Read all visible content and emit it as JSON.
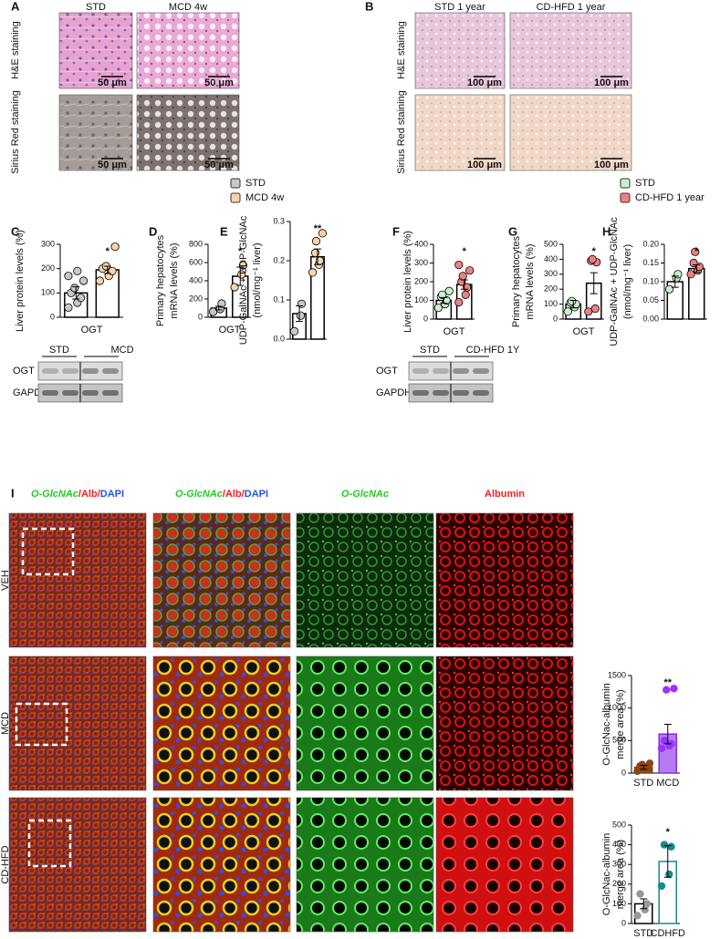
{
  "panels": {
    "A": {
      "label": "A",
      "columns": [
        "STD",
        "MCD 4w"
      ],
      "rows": [
        "H&E staining",
        "Sirius Red staining"
      ],
      "scale_bars": [
        "50 μm",
        "50 μm",
        "50 μm",
        "50 μm"
      ],
      "legend": [
        {
          "name": "STD",
          "color": "#c8c8c8"
        },
        {
          "name": "MCD 4w",
          "color": "#f9d3a9"
        }
      ]
    },
    "B": {
      "label": "B",
      "columns": [
        "STD 1 year",
        "CD-HFD 1 year"
      ],
      "rows": [
        "H&E staining",
        "Sirius Red staining"
      ],
      "scale_bars": [
        "100 μm",
        "100 μm",
        "100 μm",
        "100 μm"
      ],
      "legend": [
        {
          "name": "STD",
          "color": "#c9f0c9"
        },
        {
          "name": "CD-HFD 1 year",
          "color": "#f08080"
        }
      ]
    },
    "C": {
      "label": "C",
      "blot": {
        "groups": [
          "STD",
          "MCD"
        ],
        "rows": [
          "OGT",
          "GAPDH"
        ]
      }
    },
    "D": {
      "label": "D"
    },
    "E": {
      "label": "E"
    },
    "F": {
      "label": "F",
      "blot": {
        "groups": [
          "STD",
          "CD-HFD 1Y"
        ],
        "rows": [
          "OGT",
          "GAPDH"
        ]
      }
    },
    "G": {
      "label": "G"
    },
    "H": {
      "label": "H"
    },
    "I": {
      "label": "I",
      "columns": [
        [
          {
            "text": "O-GlcNAc",
            "color": "#22cc22"
          },
          {
            "text": "/Alb/",
            "color": "#ee2222"
          },
          {
            "text": "DAPI",
            "color": "#2255ee"
          }
        ],
        [
          {
            "text": "O-GlcNAc",
            "color": "#22cc22"
          },
          {
            "text": "/Alb/",
            "color": "#ee2222"
          },
          {
            "text": "DAPI",
            "color": "#2255ee"
          }
        ],
        [
          {
            "text": "O-GlcNAc",
            "color": "#22cc22"
          }
        ],
        [
          {
            "text": "Albumin",
            "color": "#ee2222"
          }
        ]
      ],
      "rows": [
        "VEH",
        "MCD",
        "CD-HFD"
      ]
    }
  },
  "chart_data": [
    {
      "type": "bar",
      "ylabel": [
        "Liver protein levels (%)"
      ],
      "xlabel": "OGT",
      "categories": [
        null,
        null
      ],
      "values": [
        100,
        195
      ],
      "errors": [
        25,
        15
      ],
      "annotation": "*",
      "points": [
        [
          40,
          60,
          80,
          100,
          120,
          150,
          170,
          190
        ],
        [
          150,
          170,
          190,
          200,
          210,
          290
        ]
      ],
      "colors": [
        "#000000",
        "#000000"
      ],
      "fills": [
        "#ffffff",
        "#ffffff"
      ],
      "point_colors": [
        "#c8c8c8",
        "#f9d3a9"
      ],
      "point_stroke": "#000000",
      "ylim": [
        0,
        300
      ],
      "yticks": [
        0,
        100,
        200,
        300
      ]
    },
    {
      "type": "bar",
      "ylabel": [
        "Primary hepatocytes",
        "mRNA levels (%)"
      ],
      "xlabel": "OGT",
      "categories": [
        null,
        null
      ],
      "values": [
        100,
        450
      ],
      "errors": [
        20,
        100
      ],
      "annotation": "*",
      "points": [
        [
          60,
          90,
          150
        ],
        [
          330,
          470,
          570
        ]
      ],
      "colors": [
        "#000000",
        "#000000"
      ],
      "fills": [
        "#ffffff",
        "#ffffff"
      ],
      "point_colors": [
        "#c8c8c8",
        "#f9d3a9"
      ],
      "point_stroke": "#000000",
      "ylim": [
        0,
        800
      ],
      "yticks": [
        0,
        200,
        400,
        600,
        800
      ]
    },
    {
      "type": "bar",
      "ylabel": [
        "UDP-GalNAc + UDP-GlcNAc",
        "(nmol/mg⁻¹ liver)"
      ],
      "categories": [
        null,
        null
      ],
      "values": [
        0.065,
        0.21
      ],
      "errors": [
        0.02,
        0.02
      ],
      "annotation": "**",
      "points": [
        [
          0.02,
          0.06,
          0.09
        ],
        [
          0.17,
          0.19,
          0.2,
          0.22,
          0.25,
          0.27
        ]
      ],
      "colors": [
        "#000000",
        "#000000"
      ],
      "fills": [
        "#ffffff",
        "#ffffff"
      ],
      "point_colors": [
        "#c8c8c8",
        "#f9d3a9"
      ],
      "point_stroke": "#000000",
      "ylim": [
        0,
        0.3
      ],
      "yticks": [
        {
          "value": 0,
          "label": "0.0"
        },
        0.1,
        0.2,
        0.3
      ]
    },
    {
      "type": "bar",
      "ylabel": [
        "Liver protein levels (%)"
      ],
      "xlabel": "OGT",
      "categories": [
        null,
        null
      ],
      "values": [
        100,
        185
      ],
      "errors": [
        15,
        25
      ],
      "annotation": "*",
      "points": [
        [
          60,
          80,
          100,
          120,
          130,
          150
        ],
        [
          90,
          130,
          170,
          200,
          230,
          260,
          290
        ]
      ],
      "colors": [
        "#000000",
        "#000000"
      ],
      "fills": [
        "#ffffff",
        "#ffffff"
      ],
      "point_colors": [
        "#c9f0c9",
        "#f08080"
      ],
      "point_stroke": "#000000",
      "ylim": [
        0,
        400
      ],
      "yticks": [
        0,
        100,
        200,
        300,
        400
      ]
    },
    {
      "type": "bar",
      "ylabel": [
        "Primary hepatocytes",
        "mRNA levels (%)"
      ],
      "xlabel": "OGT",
      "categories": [
        null,
        null
      ],
      "values": [
        100,
        240
      ],
      "errors": [
        25,
        70
      ],
      "annotation": "*",
      "points": [
        [
          50,
          80,
          100,
          110,
          120
        ],
        [
          50,
          70,
          380,
          390,
          400
        ]
      ],
      "colors": [
        "#000000",
        "#000000"
      ],
      "fills": [
        "#ffffff",
        "#ffffff"
      ],
      "point_colors": [
        "#c9f0c9",
        "#f08080"
      ],
      "point_stroke": "#000000",
      "ylim": [
        0,
        500
      ],
      "yticks": [
        0,
        100,
        200,
        300,
        400,
        500
      ]
    },
    {
      "type": "bar",
      "ylabel": [
        "UDP-GalNAc + UDP-GlcNAc",
        "(nmol/mg⁻¹ liver)"
      ],
      "categories": [
        null,
        null
      ],
      "values": [
        0.1,
        0.135
      ],
      "errors": [
        0.015,
        0.01
      ],
      "annotation": "*",
      "points": [
        [
          0.08,
          0.11,
          0.12
        ],
        [
          0.12,
          0.13,
          0.14,
          0.15,
          0.18
        ]
      ],
      "colors": [
        "#000000",
        "#000000"
      ],
      "fills": [
        "#ffffff",
        "#ffffff"
      ],
      "point_colors": [
        "#c9f0c9",
        "#f08080"
      ],
      "point_stroke": "#000000",
      "ylim": [
        0,
        0.2
      ],
      "yticks": [
        {
          "value": 0,
          "label": "0.00"
        },
        {
          "value": 0.05,
          "label": "0.05"
        },
        {
          "value": 0.1,
          "label": "0.10"
        },
        {
          "value": 0.15,
          "label": "0.15"
        },
        {
          "value": 0.2,
          "label": "0.20"
        }
      ]
    },
    {
      "type": "bar",
      "ylabel": [
        "O-GlcNac-albumin",
        "merge area (%)"
      ],
      "categories": [
        "STD",
        "MCD"
      ],
      "values": [
        90,
        600
      ],
      "errors": [
        30,
        150
      ],
      "annotation": "**",
      "points": [
        [
          30,
          60,
          90,
          110,
          130,
          150
        ],
        [
          380,
          420,
          450,
          500,
          1280,
          1300
        ]
      ],
      "colors": [
        "#8b4513",
        "#8a2be2"
      ],
      "fills": [
        "#8b4513",
        "#b57cf2"
      ],
      "point_colors": [
        "#8b4513",
        "#9b30ff"
      ],
      "ylim": [
        0,
        1500
      ],
      "yticks": [
        0,
        500,
        1000,
        1500
      ]
    },
    {
      "type": "bar",
      "ylabel": [
        "O-GlcNac-albumin",
        "merge area (%)"
      ],
      "categories": [
        "STD",
        "CDHFD"
      ],
      "values": [
        100,
        315
      ],
      "errors": [
        25,
        80
      ],
      "annotation": "*",
      "points": [
        [
          40,
          70,
          100,
          150
        ],
        [
          190,
          250,
          390,
          400
        ]
      ],
      "colors": [
        "#000000",
        "#1a8a8a"
      ],
      "fills": [
        "#ffffff",
        "#ffffff"
      ],
      "point_colors": [
        "#999999",
        "#1a8a8a"
      ],
      "ylim": [
        0,
        500
      ],
      "yticks": [
        0,
        100,
        200,
        300,
        400,
        500
      ]
    }
  ]
}
